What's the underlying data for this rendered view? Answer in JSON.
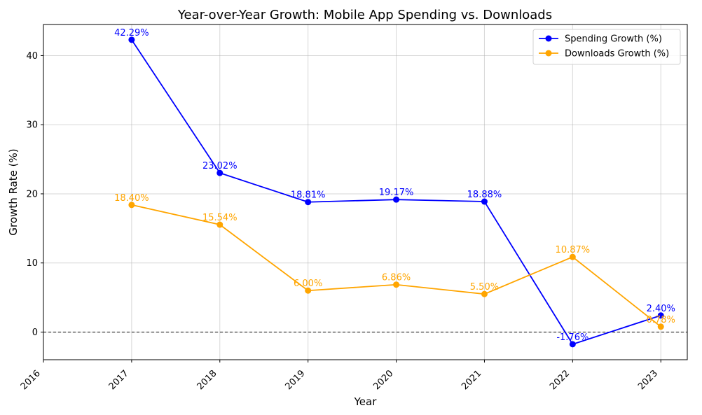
{
  "chart_data": {
    "type": "line",
    "title": "Year-over-Year Growth: Mobile App Spending vs. Downloads",
    "xlabel": "Year",
    "ylabel": "Growth Rate (%)",
    "xlim": [
      2016,
      2023.3
    ],
    "ylim": [
      -4,
      44.5
    ],
    "x_ticks": [
      2016,
      2017,
      2018,
      2019,
      2020,
      2021,
      2022,
      2023
    ],
    "y_ticks": [
      0,
      10,
      20,
      30,
      40
    ],
    "grid": true,
    "legend_position": "top-right",
    "zero_line": true,
    "series": [
      {
        "name": "Spending Growth (%)",
        "color": "#0000ff",
        "x": [
          2017,
          2018,
          2019,
          2020,
          2021,
          2022,
          2023
        ],
        "values": [
          42.29,
          23.02,
          18.81,
          19.17,
          18.88,
          -1.76,
          2.4
        ],
        "labels": [
          "42.29%",
          "23.02%",
          "18.81%",
          "19.17%",
          "18.88%",
          "-1.76%",
          "2.40%"
        ]
      },
      {
        "name": "Downloads Growth (%)",
        "color": "#ffa500",
        "x": [
          2017,
          2018,
          2019,
          2020,
          2021,
          2022,
          2023
        ],
        "values": [
          18.4,
          15.54,
          6.0,
          6.86,
          5.5,
          10.87,
          0.78
        ],
        "labels": [
          "18.40%",
          "15.54%",
          "6.00%",
          "6.86%",
          "5.50%",
          "10.87%",
          "0.78%"
        ]
      }
    ]
  }
}
